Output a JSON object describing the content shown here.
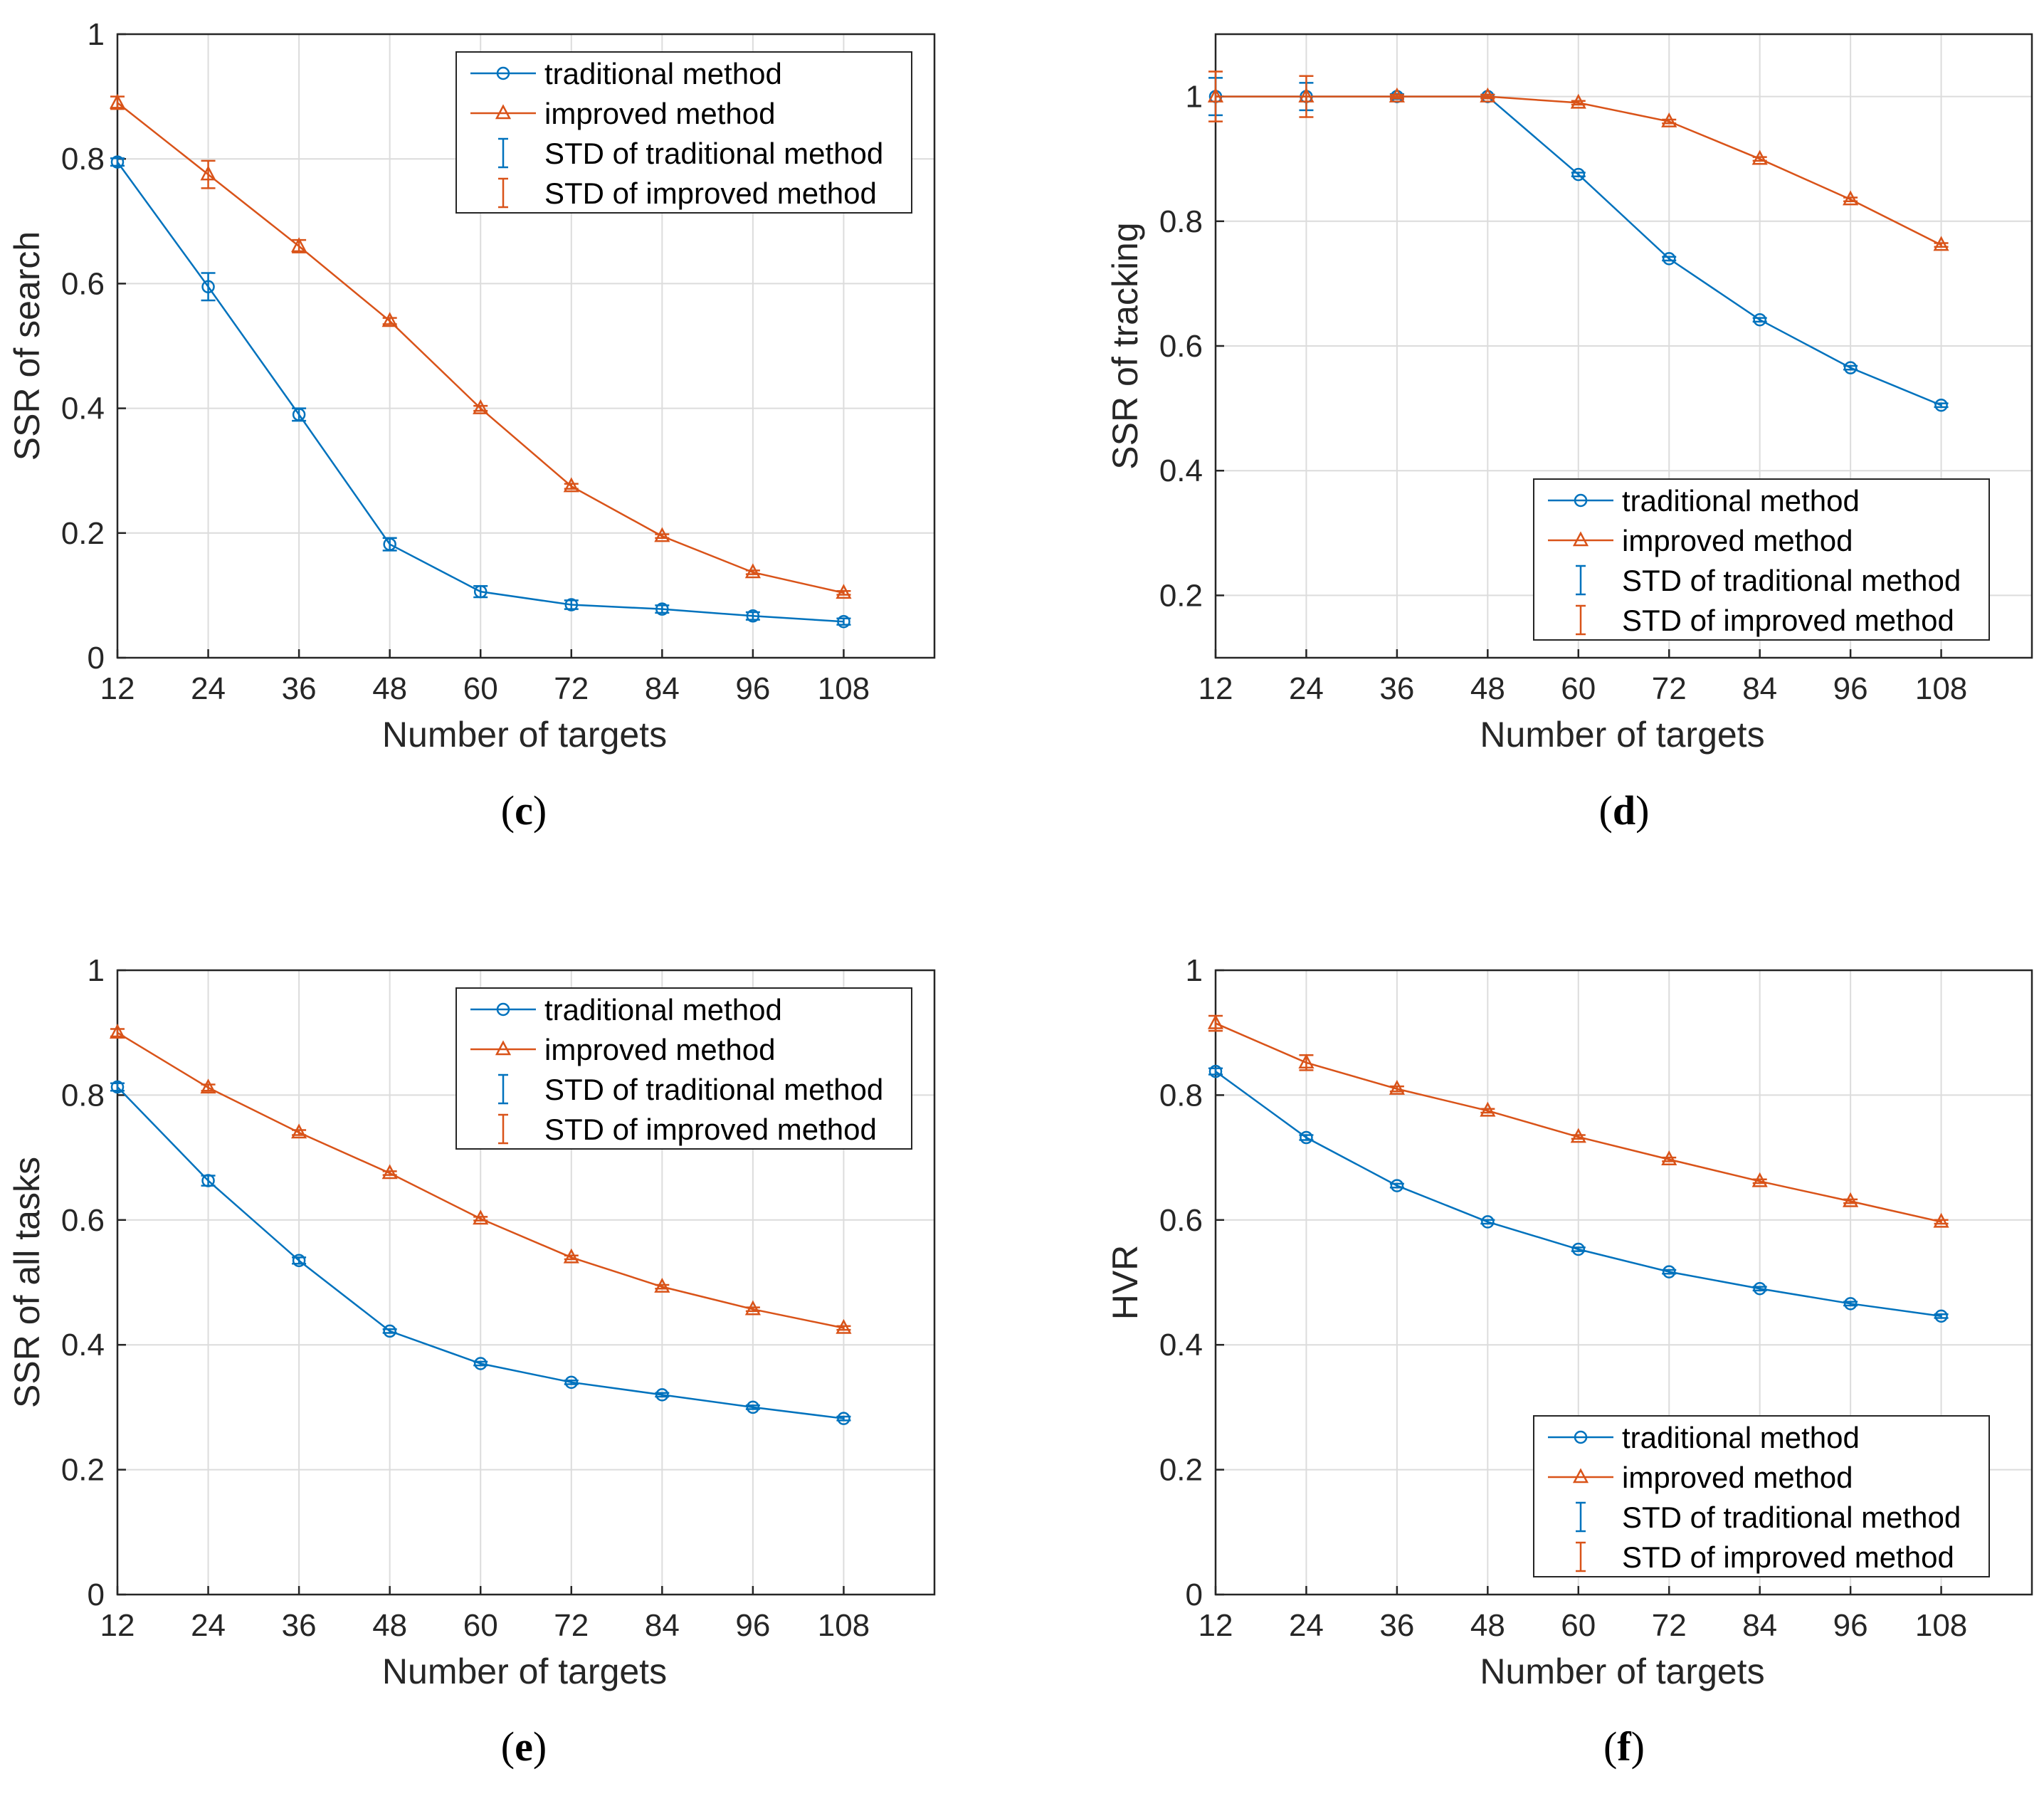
{
  "colors": {
    "traditional": "#0072BD",
    "improved": "#D95319",
    "grid": "#dcdcdc",
    "axis": "#262626"
  },
  "chart_data": [
    {
      "panel": "c",
      "caption_label": "c",
      "type": "line",
      "x": [
        12,
        24,
        36,
        48,
        60,
        72,
        84,
        96,
        108
      ],
      "xlabel": "Number of targets",
      "ylabel": "SSR of search",
      "xlim": [
        12,
        120
      ],
      "ylim": [
        0,
        1
      ],
      "xticks": [
        "12",
        "24",
        "36",
        "48",
        "60",
        "72",
        "84",
        "96",
        "108"
      ],
      "yticks": [
        "0",
        "0.2",
        "0.4",
        "0.6",
        "0.8",
        "1"
      ],
      "legend_position": "top-right",
      "series": [
        {
          "name": "traditional method",
          "marker": "circle",
          "color": "#0072BD",
          "values": [
            0.795,
            0.595,
            0.39,
            0.182,
            0.106,
            0.085,
            0.078,
            0.067,
            0.058
          ],
          "std": [
            0.006,
            0.022,
            0.01,
            0.01,
            0.009,
            0.007,
            0.006,
            0.006,
            0.005
          ]
        },
        {
          "name": "improved method",
          "marker": "triangle",
          "color": "#D95319",
          "values": [
            0.89,
            0.775,
            0.66,
            0.54,
            0.4,
            0.275,
            0.195,
            0.137,
            0.104
          ],
          "std": [
            0.01,
            0.022,
            0.01,
            0.005,
            0.004,
            0.004,
            0.003,
            0.003,
            0.003
          ]
        }
      ],
      "legend_std": [
        "STD of traditional method",
        "STD of improved method"
      ]
    },
    {
      "panel": "d",
      "caption_label": "d",
      "type": "line",
      "x": [
        12,
        24,
        36,
        48,
        60,
        72,
        84,
        96,
        108
      ],
      "xlabel": "Number of targets",
      "ylabel": "SSR of tracking",
      "xlim": [
        12,
        120
      ],
      "ylim": [
        0.1,
        1.1
      ],
      "xticks": [
        "12",
        "24",
        "36",
        "48",
        "60",
        "72",
        "84",
        "96",
        "108"
      ],
      "yticks": [
        "0.2",
        "0.4",
        "0.6",
        "0.8",
        "1"
      ],
      "legend_position": "bottom-right",
      "series": [
        {
          "name": "traditional method",
          "marker": "circle",
          "color": "#0072BD",
          "values": [
            1.0,
            1.0,
            1.0,
            1.0,
            0.875,
            0.74,
            0.642,
            0.565,
            0.505
          ],
          "std": [
            0.03,
            0.022,
            0.004,
            0.003,
            0.003,
            0.003,
            0.003,
            0.003,
            0.003
          ]
        },
        {
          "name": "improved method",
          "marker": "triangle",
          "color": "#D95319",
          "values": [
            1.0,
            1.0,
            1.0,
            1.0,
            0.99,
            0.96,
            0.9,
            0.835,
            0.762
          ],
          "std": [
            0.04,
            0.033,
            0.003,
            0.003,
            0.003,
            0.003,
            0.003,
            0.003,
            0.003
          ]
        }
      ],
      "legend_std": [
        "STD of traditional method",
        "STD of improved method"
      ]
    },
    {
      "panel": "e",
      "caption_label": "e",
      "type": "line",
      "x": [
        12,
        24,
        36,
        48,
        60,
        72,
        84,
        96,
        108
      ],
      "xlabel": "Number of targets",
      "ylabel": "SSR of all tasks",
      "xlim": [
        12,
        120
      ],
      "ylim": [
        0,
        1
      ],
      "xticks": [
        "12",
        "24",
        "36",
        "48",
        "60",
        "72",
        "84",
        "96",
        "108"
      ],
      "yticks": [
        "0",
        "0.2",
        "0.4",
        "0.6",
        "0.8",
        "1"
      ],
      "legend_position": "top-right",
      "series": [
        {
          "name": "traditional method",
          "marker": "circle",
          "color": "#0072BD",
          "values": [
            0.813,
            0.663,
            0.535,
            0.422,
            0.37,
            0.34,
            0.32,
            0.3,
            0.282
          ],
          "std": [
            0.006,
            0.008,
            0.005,
            0.003,
            0.003,
            0.003,
            0.003,
            0.003,
            0.003
          ]
        },
        {
          "name": "improved method",
          "marker": "triangle",
          "color": "#D95319",
          "values": [
            0.9,
            0.812,
            0.74,
            0.675,
            0.602,
            0.54,
            0.493,
            0.457,
            0.427
          ],
          "std": [
            0.006,
            0.005,
            0.004,
            0.003,
            0.003,
            0.003,
            0.003,
            0.003,
            0.003
          ]
        }
      ],
      "legend_std": [
        "STD of traditional method",
        "STD of improved method"
      ]
    },
    {
      "panel": "f",
      "caption_label": "f",
      "type": "line",
      "x": [
        12,
        24,
        36,
        48,
        60,
        72,
        84,
        96,
        108
      ],
      "xlabel": "Number of targets",
      "ylabel": "HVR",
      "xlim": [
        12,
        120
      ],
      "ylim": [
        0,
        1
      ],
      "xticks": [
        "12",
        "24",
        "36",
        "48",
        "60",
        "72",
        "84",
        "96",
        "108"
      ],
      "yticks": [
        "0",
        "0.2",
        "0.4",
        "0.6",
        "0.8",
        "1"
      ],
      "legend_position": "bottom-right",
      "series": [
        {
          "name": "traditional method",
          "marker": "circle",
          "color": "#0072BD",
          "values": [
            0.838,
            0.732,
            0.655,
            0.597,
            0.553,
            0.517,
            0.49,
            0.466,
            0.446
          ],
          "std": [
            0.005,
            0.004,
            0.003,
            0.003,
            0.003,
            0.003,
            0.003,
            0.003,
            0.003
          ]
        },
        {
          "name": "improved method",
          "marker": "triangle",
          "color": "#D95319",
          "values": [
            0.915,
            0.852,
            0.81,
            0.775,
            0.733,
            0.697,
            0.662,
            0.63,
            0.597
          ],
          "std": [
            0.012,
            0.012,
            0.004,
            0.003,
            0.003,
            0.003,
            0.003,
            0.003,
            0.003
          ]
        }
      ],
      "legend_std": [
        "STD of traditional method",
        "STD of improved method"
      ]
    }
  ]
}
